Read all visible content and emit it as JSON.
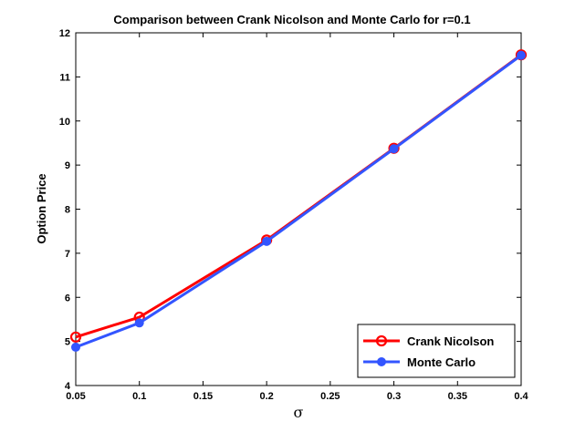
{
  "chart_data": {
    "type": "line",
    "title": "Comparison between Crank Nicolson and Monte Carlo for r=0.1",
    "xlabel": "σ",
    "ylabel": "Option Price",
    "xlim": [
      0.05,
      0.4
    ],
    "ylim": [
      4,
      12
    ],
    "xticks": [
      "0.05",
      "0.1",
      "0.15",
      "0.2",
      "0.25",
      "0.3",
      "0.35",
      "0.4"
    ],
    "yticks": [
      "4",
      "5",
      "6",
      "7",
      "8",
      "9",
      "10",
      "11",
      "12"
    ],
    "x": [
      0.05,
      0.1,
      0.2,
      0.3,
      0.4
    ],
    "series": [
      {
        "name": "Crank Nicolson",
        "values": [
          5.1,
          5.55,
          7.3,
          9.38,
          11.5
        ],
        "color": "#ff0000",
        "marker": "open-circle"
      },
      {
        "name": "Monte Carlo",
        "values": [
          4.87,
          5.42,
          7.27,
          9.37,
          11.49
        ],
        "color": "#3355ff",
        "marker": "filled-circle"
      }
    ],
    "legend_position": "bottom-right",
    "grid": false
  }
}
